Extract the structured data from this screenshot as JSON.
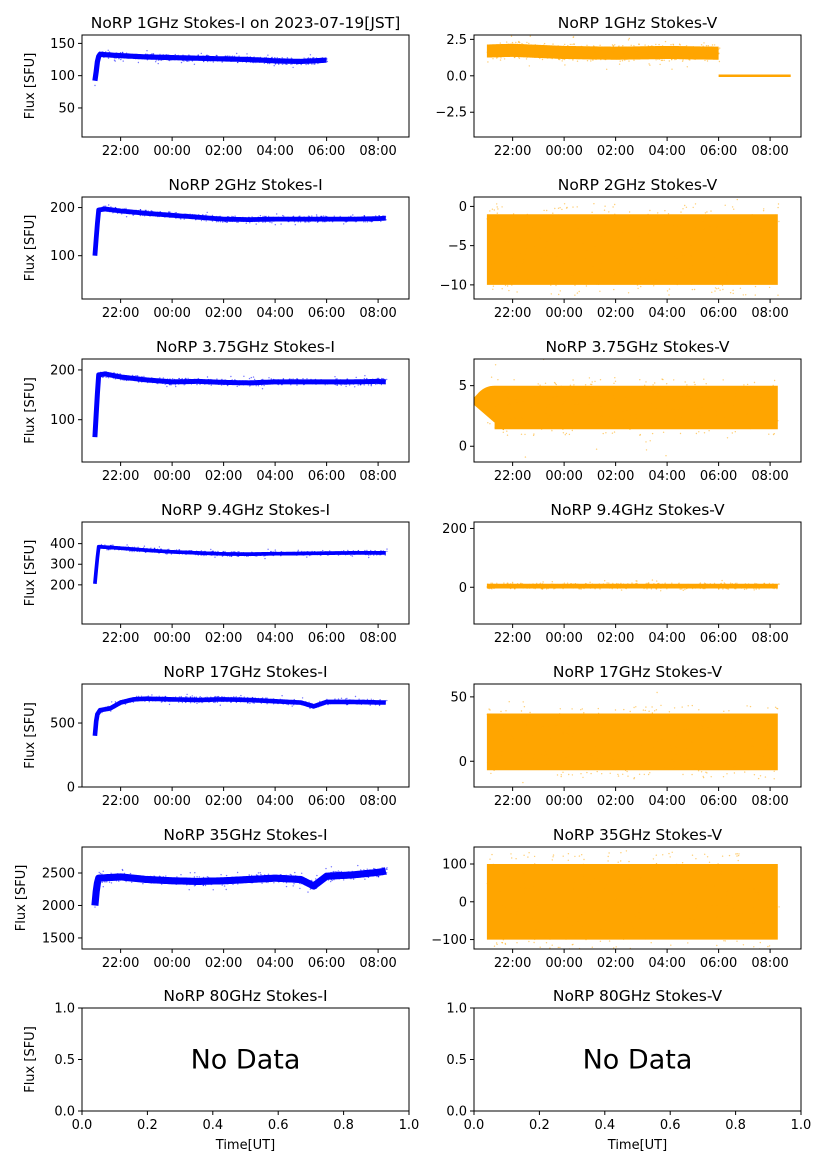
{
  "chart_data": [
    {
      "id": "p1i",
      "type": "scatter",
      "title": "NoRP 1GHz Stokes-I on 2023-07-19[JST]",
      "ylabel": "Flux [SFU]",
      "xlabel": "",
      "color": "#0000ff",
      "x_tick_labels": [
        "22:00",
        "00:00",
        "02:00",
        "04:00",
        "06:00",
        "08:00"
      ],
      "y_ticks": [
        50,
        100,
        150
      ],
      "ylim": [
        5,
        163
      ],
      "trend": [
        [
          21.0,
          92
        ],
        [
          21.07,
          112
        ],
        [
          21.12,
          128
        ],
        [
          21.2,
          133
        ],
        [
          22,
          131
        ],
        [
          23,
          129
        ],
        [
          24,
          128
        ],
        [
          25,
          127
        ],
        [
          26,
          126
        ],
        [
          27,
          125
        ],
        [
          28,
          123
        ],
        [
          29,
          122
        ],
        [
          30,
          124
        ]
      ],
      "band": 4,
      "x_end": 30.05
    },
    {
      "id": "p1v",
      "type": "scatter",
      "title": "NoRP 1GHz Stokes-V",
      "ylabel": "",
      "xlabel": "",
      "color": "#ffa500",
      "x_tick_labels": [
        "22:00",
        "00:00",
        "02:00",
        "04:00",
        "06:00",
        "08:00"
      ],
      "y_ticks": [
        -2.5,
        0.0,
        2.5
      ],
      "y_tick_labels": [
        "−2.5",
        "0.0",
        "2.5"
      ],
      "ylim": [
        -4.2,
        2.8
      ],
      "trend": [
        [
          21.0,
          1.7
        ],
        [
          22,
          1.75
        ],
        [
          24,
          1.6
        ],
        [
          26,
          1.55
        ],
        [
          28,
          1.6
        ],
        [
          30,
          1.55
        ]
      ],
      "band": 0.45,
      "x_end": 30.05,
      "flat": [
        [
          30.0,
          32.8,
          0.0
        ]
      ]
    },
    {
      "id": "p2i",
      "type": "scatter",
      "title": "NoRP 2GHz Stokes-I",
      "ylabel": "Flux [SFU]",
      "xlabel": "",
      "color": "#0000ff",
      "x_tick_labels": [
        "22:00",
        "00:00",
        "02:00",
        "04:00",
        "06:00",
        "08:00"
      ],
      "y_ticks": [
        100,
        200
      ],
      "ylim": [
        10,
        222
      ],
      "trend": [
        [
          21.0,
          100
        ],
        [
          21.07,
          150
        ],
        [
          21.15,
          195
        ],
        [
          21.4,
          197
        ],
        [
          22,
          193
        ],
        [
          23,
          188
        ],
        [
          24,
          184
        ],
        [
          25,
          180
        ],
        [
          26,
          176
        ],
        [
          27,
          175
        ],
        [
          28,
          176
        ],
        [
          29,
          176
        ],
        [
          30,
          176
        ],
        [
          31,
          176
        ],
        [
          32,
          177
        ],
        [
          32.3,
          178
        ]
      ],
      "band": 5,
      "x_end": 32.35
    },
    {
      "id": "p2v",
      "type": "scatter",
      "title": "NoRP 2GHz Stokes-V",
      "ylabel": "",
      "xlabel": "",
      "color": "#ffa500",
      "x_tick_labels": [
        "22:00",
        "00:00",
        "02:00",
        "04:00",
        "06:00",
        "08:00"
      ],
      "y_ticks": [
        -10,
        -5,
        0
      ],
      "y_tick_labels": [
        "−10",
        "−5",
        "0"
      ],
      "ylim": [
        -11.8,
        1.2
      ],
      "trend": [
        [
          21.0,
          -5.5
        ],
        [
          32.3,
          -5.5
        ]
      ],
      "band": 4.5,
      "x_end": 32.35
    },
    {
      "id": "p3i",
      "type": "scatter",
      "title": "NoRP 3.75GHz Stokes-I",
      "ylabel": "Flux [SFU]",
      "xlabel": "",
      "color": "#0000ff",
      "x_tick_labels": [
        "22:00",
        "00:00",
        "02:00",
        "04:00",
        "06:00",
        "08:00"
      ],
      "y_ticks": [
        100,
        200
      ],
      "ylim": [
        15,
        222
      ],
      "trend": [
        [
          21.0,
          65
        ],
        [
          21.07,
          130
        ],
        [
          21.15,
          190
        ],
        [
          21.4,
          192
        ],
        [
          22,
          186
        ],
        [
          23,
          180
        ],
        [
          24,
          176
        ],
        [
          25,
          177
        ],
        [
          26,
          175
        ],
        [
          27,
          174
        ],
        [
          28,
          176
        ],
        [
          29,
          176
        ],
        [
          30,
          176
        ],
        [
          31,
          176
        ],
        [
          32,
          177
        ],
        [
          32.3,
          176
        ]
      ],
      "band": 5,
      "x_end": 32.35
    },
    {
      "id": "p3v",
      "type": "scatter",
      "title": "NoRP 3.75GHz Stokes-V",
      "ylabel": "",
      "xlabel": "",
      "color": "#ffa500",
      "x_tick_labels": [
        "22:00",
        "00:00",
        "02:00",
        "04:00",
        "06:00",
        "08:00"
      ],
      "y_ticks": [
        0,
        5
      ],
      "ylim": [
        -1.3,
        7.2
      ],
      "trend": [
        [
          21.0,
          2.5
        ],
        [
          21.3,
          3.2
        ],
        [
          32.3,
          3.2
        ]
      ],
      "band": 1.8,
      "x_end": 32.35
    },
    {
      "id": "p4i",
      "type": "scatter",
      "title": "NoRP 9.4GHz Stokes-I",
      "ylabel": "Flux [SFU]",
      "xlabel": "",
      "color": "#0000ff",
      "x_tick_labels": [
        "22:00",
        "00:00",
        "02:00",
        "04:00",
        "06:00",
        "08:00"
      ],
      "y_ticks": [
        200,
        300,
        400
      ],
      "ylim": [
        10,
        505
      ],
      "trend": [
        [
          21.0,
          205
        ],
        [
          21.07,
          300
        ],
        [
          21.15,
          385
        ],
        [
          22,
          378
        ],
        [
          23,
          368
        ],
        [
          24,
          360
        ],
        [
          25,
          355
        ],
        [
          26,
          350
        ],
        [
          27,
          349
        ],
        [
          28,
          351
        ],
        [
          29,
          352
        ],
        [
          30,
          354
        ],
        [
          31,
          355
        ],
        [
          32.3,
          355
        ]
      ],
      "band": 9,
      "x_end": 32.35
    },
    {
      "id": "p4v",
      "type": "scatter",
      "title": "NoRP 9.4GHz Stokes-V",
      "ylabel": "",
      "xlabel": "",
      "color": "#ffa500",
      "x_tick_labels": [
        "22:00",
        "00:00",
        "02:00",
        "04:00",
        "06:00",
        "08:00"
      ],
      "y_ticks": [
        0,
        200
      ],
      "ylim": [
        -125,
        222
      ],
      "trend": [
        [
          21.0,
          4
        ],
        [
          32.3,
          4
        ]
      ],
      "band": 8,
      "x_end": 32.35
    },
    {
      "id": "p5i",
      "type": "scatter",
      "title": "NoRP 17GHz Stokes-I",
      "ylabel": "Flux [SFU]",
      "xlabel": "",
      "color": "#0000ff",
      "x_tick_labels": [
        "22:00",
        "00:00",
        "02:00",
        "04:00",
        "06:00",
        "08:00"
      ],
      "y_ticks": [
        0,
        500
      ],
      "ylim": [
        0,
        805
      ],
      "trend": [
        [
          21.0,
          400
        ],
        [
          21.07,
          560
        ],
        [
          21.2,
          600
        ],
        [
          21.6,
          615
        ],
        [
          22,
          660
        ],
        [
          22.5,
          685
        ],
        [
          23,
          690
        ],
        [
          24,
          685
        ],
        [
          25,
          680
        ],
        [
          26,
          685
        ],
        [
          27,
          680
        ],
        [
          28,
          670
        ],
        [
          29,
          660
        ],
        [
          29.5,
          630
        ],
        [
          30,
          665
        ],
        [
          31,
          665
        ],
        [
          32.3,
          660
        ]
      ],
      "band": 18,
      "x_end": 32.35
    },
    {
      "id": "p5v",
      "type": "scatter",
      "title": "NoRP 17GHz Stokes-V",
      "ylabel": "",
      "xlabel": "",
      "color": "#ffa500",
      "x_tick_labels": [
        "22:00",
        "00:00",
        "02:00",
        "04:00",
        "06:00",
        "08:00"
      ],
      "y_ticks": [
        0,
        50
      ],
      "ylim": [
        -20,
        60
      ],
      "trend": [
        [
          21.0,
          15
        ],
        [
          32.3,
          15
        ]
      ],
      "band": 22,
      "x_end": 32.35
    },
    {
      "id": "p6i",
      "type": "scatter",
      "title": "NoRP 35GHz Stokes-I",
      "ylabel": "Flux [SFU]",
      "xlabel": "",
      "color": "#0000ff",
      "x_tick_labels": [
        "22:00",
        "00:00",
        "02:00",
        "04:00",
        "06:00",
        "08:00"
      ],
      "y_ticks": [
        1500,
        2000,
        2500
      ],
      "ylim": [
        1330,
        2900
      ],
      "trend": [
        [
          21.0,
          2000
        ],
        [
          21.07,
          2300
        ],
        [
          21.15,
          2420
        ],
        [
          22,
          2440
        ],
        [
          23,
          2400
        ],
        [
          24,
          2380
        ],
        [
          25,
          2370
        ],
        [
          26,
          2380
        ],
        [
          27,
          2400
        ],
        [
          28,
          2420
        ],
        [
          29,
          2400
        ],
        [
          29.5,
          2300
        ],
        [
          30,
          2450
        ],
        [
          31,
          2470
        ],
        [
          32,
          2510
        ],
        [
          32.3,
          2530
        ]
      ],
      "band": 55,
      "x_end": 32.35
    },
    {
      "id": "p6v",
      "type": "scatter",
      "title": "NoRP 35GHz Stokes-V",
      "ylabel": "",
      "xlabel": "",
      "color": "#ffa500",
      "x_tick_labels": [
        "22:00",
        "00:00",
        "02:00",
        "04:00",
        "06:00",
        "08:00"
      ],
      "y_ticks": [
        -100,
        0,
        100
      ],
      "y_tick_labels": [
        "−100",
        "0",
        "100"
      ],
      "ylim": [
        -125,
        145
      ],
      "trend": [
        [
          21.0,
          0
        ],
        [
          32.3,
          0
        ]
      ],
      "band": 100,
      "x_end": 32.35
    },
    {
      "id": "p7i",
      "type": "empty",
      "title": "NoRP 80GHz Stokes-I",
      "ylabel": "Flux [SFU]",
      "xlabel": "Time[UT]",
      "note": "No Data",
      "x_ticks": [
        0.0,
        0.2,
        0.4,
        0.6,
        0.8,
        1.0
      ],
      "y_ticks": [
        0.0,
        0.5,
        1.0
      ],
      "x_tick_labels": [
        "0.0",
        "0.2",
        "0.4",
        "0.6",
        "0.8",
        "1.0"
      ],
      "y_tick_labels": [
        "0.0",
        "0.5",
        "1.0"
      ],
      "ylim": [
        0,
        1
      ],
      "xlim": [
        0,
        1
      ]
    },
    {
      "id": "p7v",
      "type": "empty",
      "title": "NoRP 80GHz Stokes-V",
      "ylabel": "",
      "xlabel": "Time[UT]",
      "note": "No Data",
      "x_ticks": [
        0.0,
        0.2,
        0.4,
        0.6,
        0.8,
        1.0
      ],
      "y_ticks": [
        0.0,
        0.5,
        1.0
      ],
      "x_tick_labels": [
        "0.0",
        "0.2",
        "0.4",
        "0.6",
        "0.8",
        "1.0"
      ],
      "y_tick_labels": [
        "0.0",
        "0.5",
        "1.0"
      ],
      "ylim": [
        0,
        1
      ],
      "xlim": [
        0,
        1
      ]
    }
  ]
}
